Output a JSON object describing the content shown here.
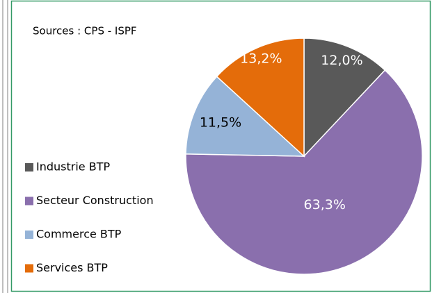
{
  "chart_data": {
    "type": "pie",
    "source": "Sources : CPS - ISPF",
    "categories": [
      "Industrie BTP",
      "Secteur Construction",
      "Commerce BTP",
      "Services BTP"
    ],
    "values": [
      12.0,
      63.3,
      11.5,
      13.2
    ],
    "value_labels": [
      "12,0%",
      "63,3%",
      "11,5%",
      "13,2%"
    ],
    "colors": [
      "#595959",
      "#8a6fad",
      "#95b3d7",
      "#e46c0a"
    ],
    "legend": "left"
  }
}
